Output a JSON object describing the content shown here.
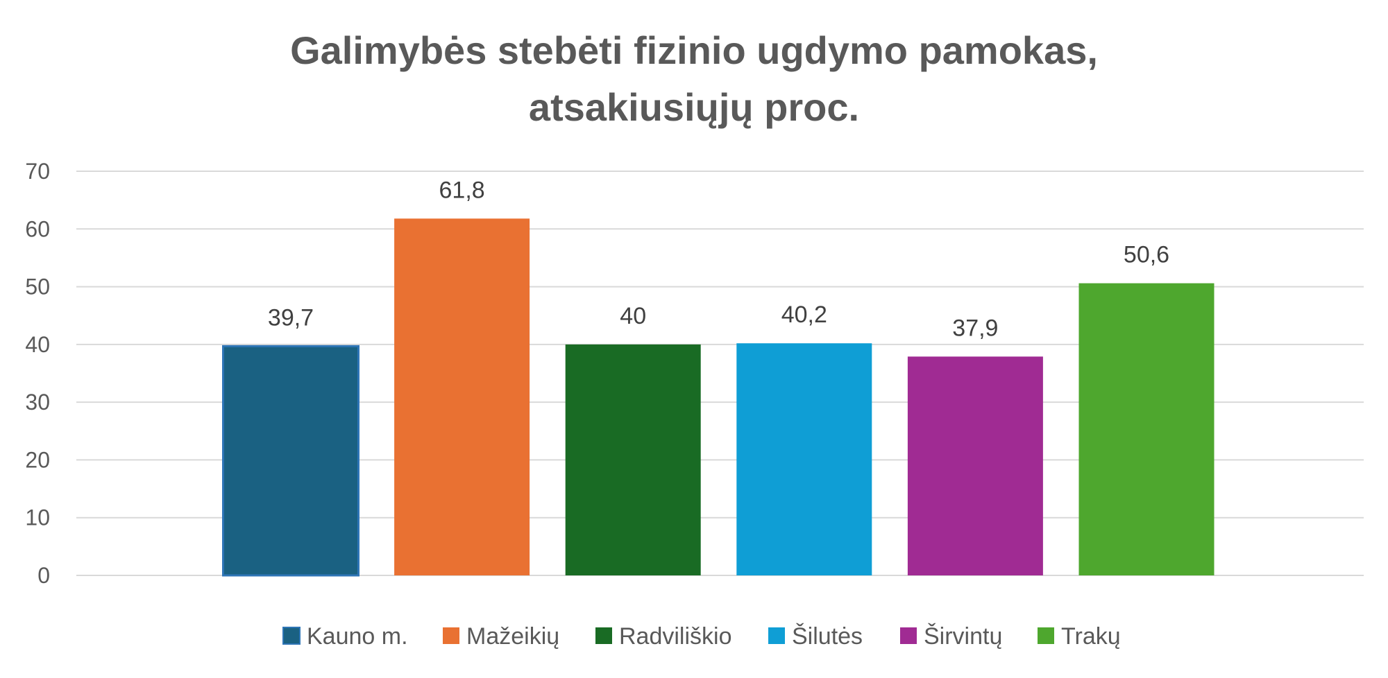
{
  "chart_data": {
    "type": "bar",
    "title": [
      "Galimybės stebėti fizinio ugdymo pamokas,",
      "atsakiusiųjų proc."
    ],
    "categories": [
      "Kauno m.",
      "Mažeikių",
      "Radviliškio",
      "Šilutės",
      "Širvintų",
      "Trakų"
    ],
    "values": [
      39.7,
      61.8,
      40,
      40.2,
      37.9,
      50.6
    ],
    "data_labels": [
      "39,7",
      "61,8",
      "40",
      "40,2",
      "37,9",
      "50,6"
    ],
    "colors": [
      "#1a6182",
      "#e97132",
      "#196b24",
      "#0f9ed5",
      "#a02b93",
      "#4ea72e"
    ],
    "ylim": [
      0,
      70
    ],
    "yticks": [
      0,
      10,
      20,
      30,
      40,
      50,
      60,
      70
    ],
    "xlabel": "",
    "ylabel": "",
    "grid": true,
    "legend_position": "bottom"
  }
}
